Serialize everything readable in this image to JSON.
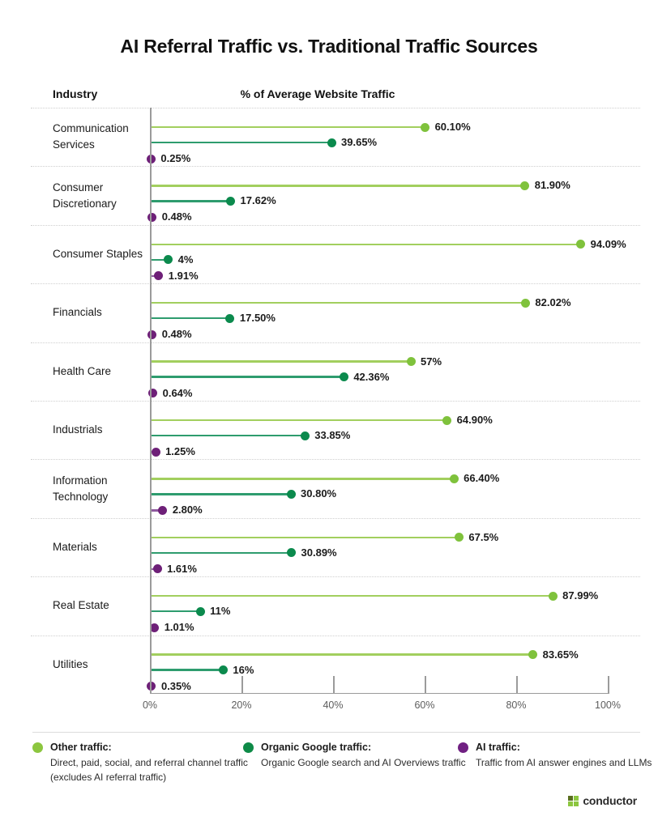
{
  "title": "AI Referral Traffic vs. Traditional Traffic Sources",
  "header": {
    "industry_label": "Industry",
    "axis_title": "% of Average Website Traffic"
  },
  "chart_data": {
    "type": "bar",
    "subtype": "horizontal-lollipop",
    "categories": [
      "Communication Services",
      "Consumer Discretionary",
      "Consumer Staples",
      "Financials",
      "Health Care",
      "Industrials",
      "Information Technology",
      "Materials",
      "Real Estate",
      "Utilities"
    ],
    "series": [
      {
        "name": "Other traffic",
        "dot_color": "#7fc23c",
        "line_color": "#a2cf5e",
        "values": [
          60.1,
          81.9,
          94.09,
          82.02,
          57,
          64.9,
          66.4,
          67.5,
          87.99,
          83.65
        ],
        "labels": [
          "60.10%",
          "81.90%",
          "94.09%",
          "82.02%",
          "57%",
          "64.90%",
          "66.40%",
          "67.5%",
          "87.99%",
          "83.65%"
        ]
      },
      {
        "name": "Organic Google traffic",
        "dot_color": "#0b8a4d",
        "line_color": "#2e9c6e",
        "values": [
          39.65,
          17.62,
          4,
          17.5,
          42.36,
          33.85,
          30.8,
          30.89,
          11,
          16
        ],
        "labels": [
          "39.65%",
          "17.62%",
          "4%",
          "17.50%",
          "42.36%",
          "33.85%",
          "30.80%",
          "30.89%",
          "11%",
          "16%"
        ]
      },
      {
        "name": "AI traffic",
        "dot_color": "#6e2078",
        "line_color": "#8f5a9f",
        "values": [
          0.25,
          0.48,
          1.91,
          0.48,
          0.64,
          1.25,
          2.8,
          1.61,
          1.01,
          0.35
        ],
        "labels": [
          "0.25%",
          "0.48%",
          "1.91%",
          "0.48%",
          "0.64%",
          "1.25%",
          "2.80%",
          "1.61%",
          "1.01%",
          "0.35%"
        ]
      }
    ],
    "x_ticks": [
      "0%",
      "20%",
      "40%",
      "60%",
      "80%",
      "100%"
    ],
    "xlim": [
      0,
      100
    ],
    "grid": false,
    "legend_position": "bottom"
  },
  "legend": [
    {
      "title": "Other traffic:",
      "lines": [
        "Direct, paid, social, and referral channel traffic",
        "(excludes AI referral traffic)"
      ],
      "color": "#8cc63f"
    },
    {
      "title": "Organic Google traffic:",
      "lines": [
        "Organic Google search and AI Overviews traffic"
      ],
      "color": "#0e8a47"
    },
    {
      "title": "AI traffic:",
      "lines": [
        "Traffic from AI answer engines and LLMs"
      ],
      "color": "#702082"
    }
  ],
  "footer": {
    "brand": "conductor"
  },
  "colors": {
    "axis": "#9b9b9b",
    "separator": "#cfcfcf",
    "tick_label": "#5d5d5d",
    "brand_green": "#8cc63f",
    "brand_dark": "#5a6e1e"
  }
}
